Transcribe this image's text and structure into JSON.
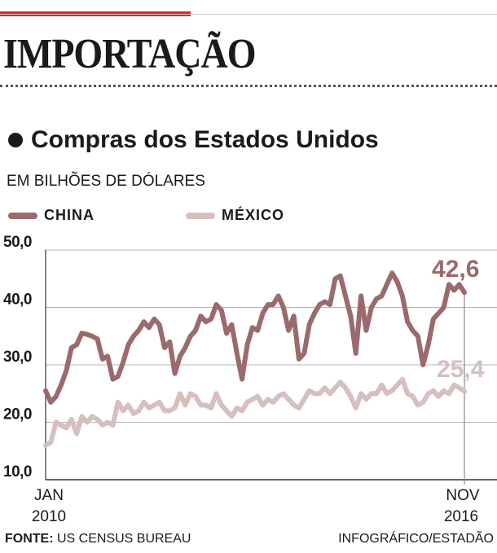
{
  "header": {
    "title": "IMPORTAÇÃO",
    "accent_color": "#d12c2c"
  },
  "subtitle": "Compras dos Estados Unidos",
  "unit_label": "EM BILHÕES DE DÓLARES",
  "legend": [
    {
      "label": "CHINA",
      "color": "#9a6a6c"
    },
    {
      "label": "MÉXICO",
      "color": "#d6bfbf"
    }
  ],
  "footer": {
    "source_label": "FONTE:",
    "source": "US CENSUS BUREAU",
    "credit": "INFOGRÁFICO/ESTADÃO"
  },
  "chart_data": {
    "type": "line",
    "ylim": [
      10,
      50
    ],
    "y_ticks": [
      "10,0",
      "20,0",
      "30,0",
      "40,0",
      "50,0"
    ],
    "y_tick_values": [
      10,
      20,
      30,
      40,
      50
    ],
    "x_start_label": [
      "JAN",
      "2010"
    ],
    "x_end_label": [
      "NOV",
      "2016"
    ],
    "grid": true,
    "end_labels": [
      "42,6",
      "25,4"
    ],
    "series": [
      {
        "name": "CHINA",
        "color": "#9a6a6c",
        "values": [
          25.5,
          23.5,
          24.5,
          26.5,
          29.0,
          33.0,
          33.5,
          35.5,
          35.3,
          35.0,
          34.5,
          31.0,
          31.5,
          27.5,
          28.0,
          30.5,
          33.5,
          35.0,
          36.0,
          37.5,
          36.5,
          38.0,
          37.0,
          33.0,
          34.0,
          28.5,
          31.5,
          33.0,
          35.0,
          36.0,
          38.5,
          37.5,
          38.0,
          40.5,
          39.5,
          35.5,
          37.0,
          32.0,
          27.5,
          33.5,
          36.5,
          36.0,
          39.0,
          40.5,
          40.5,
          42.0,
          40.0,
          36.0,
          38.5,
          31.0,
          32.0,
          37.0,
          39.0,
          40.5,
          41.0,
          40.5,
          45.0,
          45.5,
          42.0,
          38.5,
          32.0,
          42.0,
          36.0,
          40.0,
          41.5,
          42.0,
          44.0,
          46.0,
          44.5,
          42.0,
          37.5,
          36.0,
          35.0,
          30.0,
          33.5,
          38.0,
          39.0,
          40.0,
          44.0,
          43.0,
          44.0,
          42.6
        ]
      },
      {
        "name": "MÉXICO",
        "color": "#d6bfbf",
        "values": [
          16.0,
          16.5,
          20.0,
          19.5,
          19.0,
          20.5,
          18.0,
          21.0,
          20.0,
          21.0,
          20.5,
          19.5,
          20.0,
          19.5,
          23.5,
          22.0,
          23.0,
          21.5,
          22.0,
          23.5,
          22.5,
          23.0,
          23.5,
          22.0,
          22.0,
          22.5,
          25.0,
          23.0,
          25.0,
          24.5,
          23.0,
          23.0,
          22.5,
          25.0,
          23.0,
          22.0,
          21.0,
          22.5,
          22.0,
          23.5,
          24.0,
          24.5,
          23.0,
          24.0,
          23.5,
          24.5,
          25.0,
          24.0,
          23.0,
          22.5,
          24.0,
          25.5,
          25.0,
          25.0,
          26.0,
          25.0,
          26.0,
          27.0,
          26.0,
          24.5,
          22.5,
          25.0,
          24.0,
          25.0,
          25.0,
          26.5,
          25.0,
          25.5,
          26.5,
          27.5,
          25.0,
          24.5,
          23.0,
          23.5,
          25.0,
          25.5,
          24.5,
          25.5,
          25.0,
          26.5,
          26.0,
          25.4
        ]
      }
    ]
  }
}
